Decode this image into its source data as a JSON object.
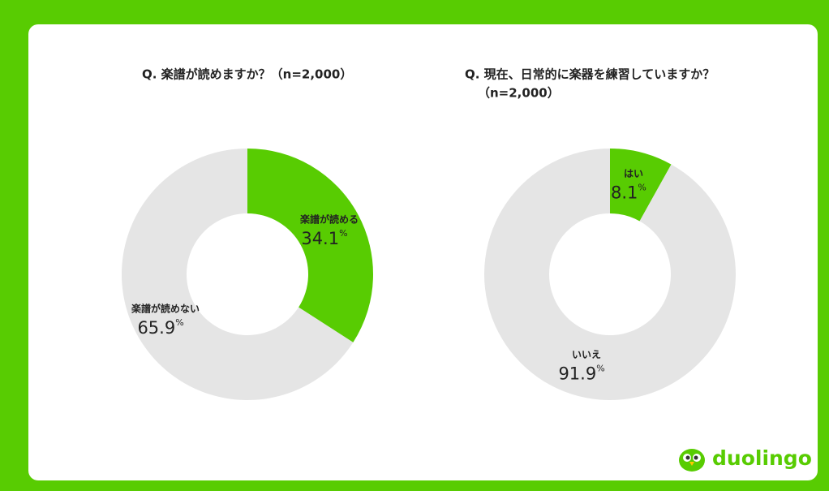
{
  "chart_data": [
    {
      "type": "pie",
      "title": "Q. 楽譜が読めますか？（n=2,000）",
      "unit": "%",
      "categories": [
        "楽譜が読める",
        "楽譜が読めない"
      ],
      "values": [
        34.1,
        65.9
      ],
      "colors": [
        "#58cc02",
        "#e5e5e5"
      ]
    },
    {
      "type": "pie",
      "title": [
        "Q. 現在、日常的に楽器を練習していますか？",
        "（n=2,000）"
      ],
      "unit": "%",
      "categories": [
        "はい",
        "いいえ"
      ],
      "values": [
        8.1,
        91.9
      ],
      "colors": [
        "#58cc02",
        "#e5e5e5"
      ]
    }
  ],
  "logo": "duolingo"
}
